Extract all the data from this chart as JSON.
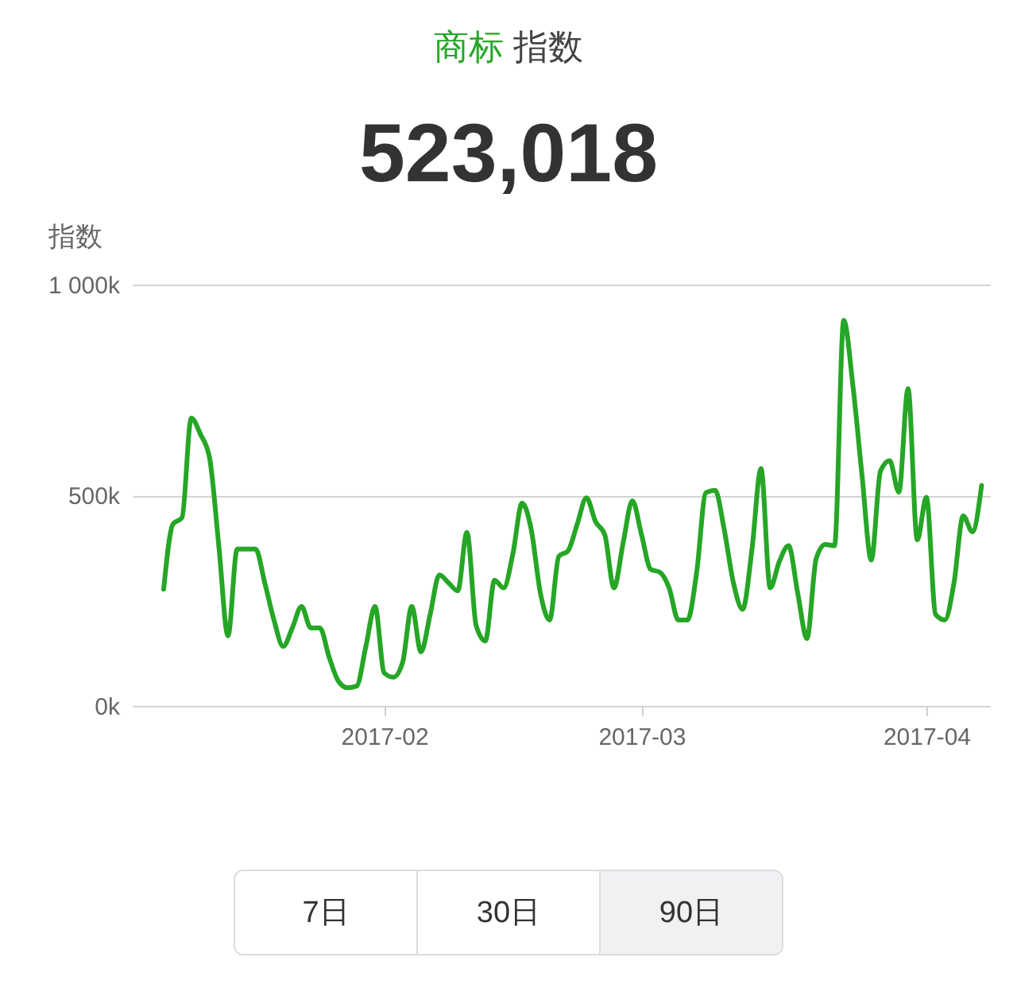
{
  "chart_data": {
    "type": "line",
    "title": "商标 指数",
    "subtitle": "523,018",
    "ylabel": "指数",
    "x": [
      "2017-01-08",
      "2017-01-09",
      "2017-01-10",
      "2017-01-11",
      "2017-01-12",
      "2017-01-13",
      "2017-01-14",
      "2017-01-15",
      "2017-01-16",
      "2017-01-17",
      "2017-01-18",
      "2017-01-19",
      "2017-01-20",
      "2017-01-21",
      "2017-01-22",
      "2017-01-23",
      "2017-01-24",
      "2017-01-25",
      "2017-01-26",
      "2017-01-27",
      "2017-01-28",
      "2017-01-29",
      "2017-01-30",
      "2017-01-31",
      "2017-02-01",
      "2017-02-02",
      "2017-02-03",
      "2017-02-04",
      "2017-02-05",
      "2017-02-06",
      "2017-02-07",
      "2017-02-08",
      "2017-02-09",
      "2017-02-10",
      "2017-02-11",
      "2017-02-12",
      "2017-02-13",
      "2017-02-14",
      "2017-02-15",
      "2017-02-16",
      "2017-02-17",
      "2017-02-18",
      "2017-02-19",
      "2017-02-20",
      "2017-02-21",
      "2017-02-22",
      "2017-02-23",
      "2017-02-24",
      "2017-02-25",
      "2017-02-26",
      "2017-02-27",
      "2017-02-28",
      "2017-03-01",
      "2017-03-02",
      "2017-03-03",
      "2017-03-04",
      "2017-03-05",
      "2017-03-06",
      "2017-03-07",
      "2017-03-08",
      "2017-03-09",
      "2017-03-10",
      "2017-03-11",
      "2017-03-12",
      "2017-03-13",
      "2017-03-14",
      "2017-03-15",
      "2017-03-16",
      "2017-03-17",
      "2017-03-18",
      "2017-03-19",
      "2017-03-20",
      "2017-03-21",
      "2017-03-22",
      "2017-03-23",
      "2017-03-24",
      "2017-03-25",
      "2017-03-26",
      "2017-03-27",
      "2017-03-28",
      "2017-03-29",
      "2017-03-30",
      "2017-03-31",
      "2017-04-01",
      "2017-04-02",
      "2017-04-03",
      "2017-04-04",
      "2017-04-05",
      "2017-04-06",
      "2017-04-07"
    ],
    "series": [
      {
        "color": "#26a626",
        "values": [
          277000,
          431000,
          447000,
          683000,
          645000,
          588000,
          380000,
          166000,
          372000,
          372000,
          372000,
          292000,
          204000,
          141000,
          185000,
          236000,
          185000,
          185000,
          116000,
          59000,
          43000,
          47000,
          141000,
          236000,
          78000,
          68000,
          103000,
          236000,
          128000,
          217000,
          311000,
          292000,
          273000,
          412000,
          191000,
          154000,
          298000,
          280000,
          361000,
          481000,
          418000,
          267000,
          204000,
          355000,
          368000,
          431000,
          494000,
          437000,
          406000,
          280000,
          387000,
          487000,
          406000,
          324000,
          317000,
          280000,
          204000,
          204000,
          317000,
          506000,
          512000,
          418000,
          292000,
          229000,
          368000,
          563000,
          280000,
          343000,
          380000,
          267000,
          160000,
          349000,
          383000,
          380000,
          915000,
          760000,
          545000,
          346000,
          557000,
          582000,
          507000,
          753000,
          394000,
          495000,
          217000,
          204000,
          292000,
          451000,
          413000,
          523000
        ]
      }
    ],
    "xlim": [
      "2017-01-04T13:00",
      "2017-04-07T22:00"
    ],
    "xticks": [
      "2017-02",
      "2017-03",
      "2017-04"
    ],
    "ylim": [
      0,
      1000000
    ],
    "yticks": [
      {
        "value": 0,
        "label": "0k"
      },
      {
        "value": 500000,
        "label": "500k"
      },
      {
        "value": 1000000,
        "label": "1 000k"
      }
    ],
    "grid": "y",
    "annotations": [
      "7日",
      "30日",
      "90日"
    ]
  }
}
